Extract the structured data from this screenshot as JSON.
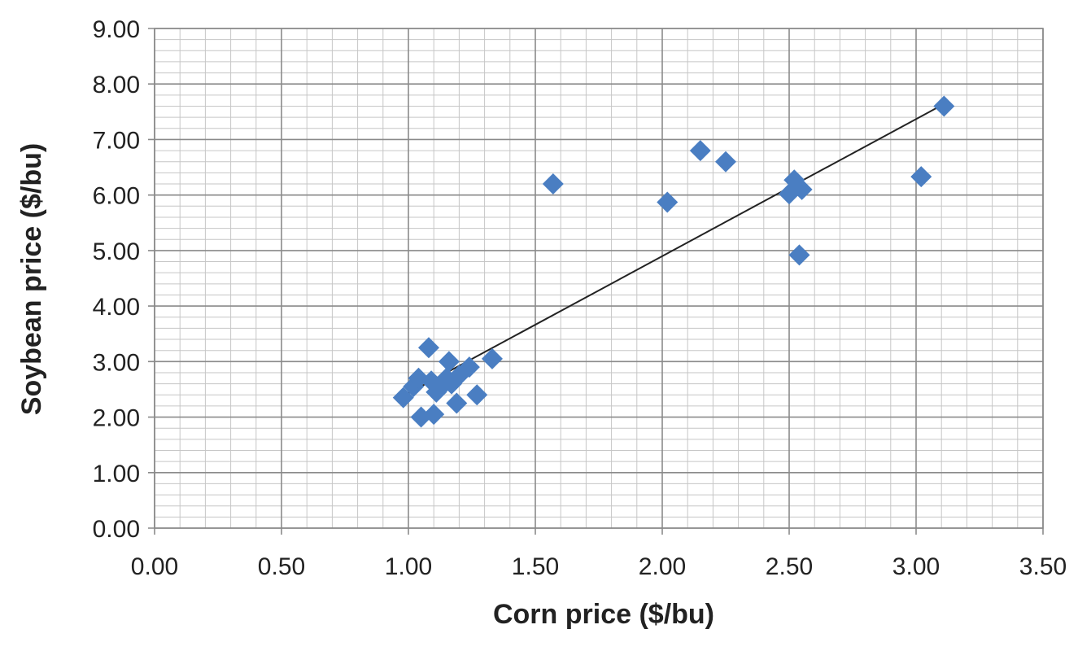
{
  "chart_data": {
    "type": "scatter",
    "title": "",
    "xlabel": "Corn price ($/bu)",
    "ylabel": "Soybean price ($/bu)",
    "xlim": [
      0,
      3.5
    ],
    "ylim": [
      0,
      9
    ],
    "x_ticks": [
      "0.00",
      "0.50",
      "1.00",
      "1.50",
      "2.00",
      "2.50",
      "3.00",
      "3.50"
    ],
    "y_ticks": [
      "0.00",
      "1.00",
      "2.00",
      "3.00",
      "4.00",
      "5.00",
      "6.00",
      "7.00",
      "8.00",
      "9.00"
    ],
    "grid": true,
    "marker_color": "#4a7ec2",
    "trendline_color": "#222222",
    "points": [
      {
        "x": 0.98,
        "y": 2.35
      },
      {
        "x": 1.02,
        "y": 2.55
      },
      {
        "x": 1.04,
        "y": 2.7
      },
      {
        "x": 1.05,
        "y": 2.0
      },
      {
        "x": 1.08,
        "y": 3.25
      },
      {
        "x": 1.09,
        "y": 2.65
      },
      {
        "x": 1.1,
        "y": 2.05
      },
      {
        "x": 1.11,
        "y": 2.45
      },
      {
        "x": 1.13,
        "y": 2.55
      },
      {
        "x": 1.15,
        "y": 2.7
      },
      {
        "x": 1.16,
        "y": 3.0
      },
      {
        "x": 1.17,
        "y": 2.6
      },
      {
        "x": 1.19,
        "y": 2.25
      },
      {
        "x": 1.2,
        "y": 2.75
      },
      {
        "x": 1.24,
        "y": 2.9
      },
      {
        "x": 1.27,
        "y": 2.4
      },
      {
        "x": 1.33,
        "y": 3.05
      },
      {
        "x": 1.57,
        "y": 6.2
      },
      {
        "x": 2.02,
        "y": 5.87
      },
      {
        "x": 2.15,
        "y": 6.8
      },
      {
        "x": 2.25,
        "y": 6.6
      },
      {
        "x": 2.5,
        "y": 6.02
      },
      {
        "x": 2.52,
        "y": 6.27
      },
      {
        "x": 2.54,
        "y": 4.92
      },
      {
        "x": 2.55,
        "y": 6.1
      },
      {
        "x": 3.02,
        "y": 6.33
      },
      {
        "x": 3.11,
        "y": 7.6
      }
    ],
    "trendline": {
      "x": [
        0.98,
        3.11
      ],
      "y": [
        2.38,
        7.64
      ]
    }
  }
}
